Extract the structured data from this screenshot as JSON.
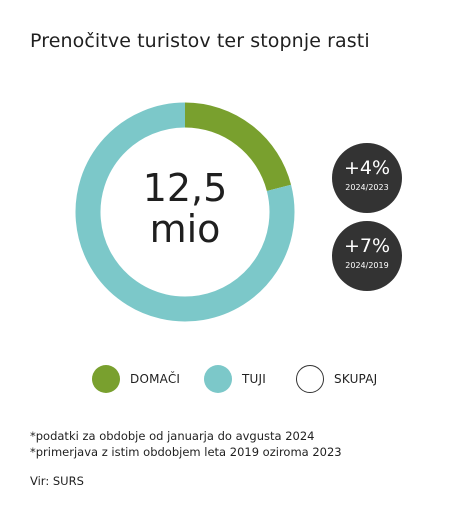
{
  "chart_data": {
    "type": "pie",
    "title": "Prenočitve turistov ter stopnje rasti",
    "center_label": {
      "value": "12,5",
      "unit": "mio"
    },
    "total": 12.5,
    "series": [
      {
        "name": "DOMAČI",
        "share": 0.21,
        "color": "#79a02e"
      },
      {
        "name": "TUJI",
        "share": 0.79,
        "color": "#7cc8c9"
      }
    ],
    "legend": {
      "placement": "bottom",
      "items": [
        {
          "label": "DOMAČI",
          "color": "#79a02e"
        },
        {
          "label": "TUJI",
          "color": "#7cc8c9"
        },
        {
          "label": "SKUPAJ",
          "color": "#ffffff"
        }
      ]
    },
    "growth_badges": [
      {
        "value": "+4%",
        "period": "2024/2023"
      },
      {
        "value": "+7%",
        "period": "2024/2019"
      }
    ]
  },
  "notes": [
    "*podatki za obdobje od januarja do avgusta 2024",
    "*primerjava z istim obdobjem leta 2019 oziroma 2023"
  ],
  "source": "Vir: SURS",
  "colors": {
    "badge_background": "#333333",
    "text": "#1f1f1f"
  }
}
